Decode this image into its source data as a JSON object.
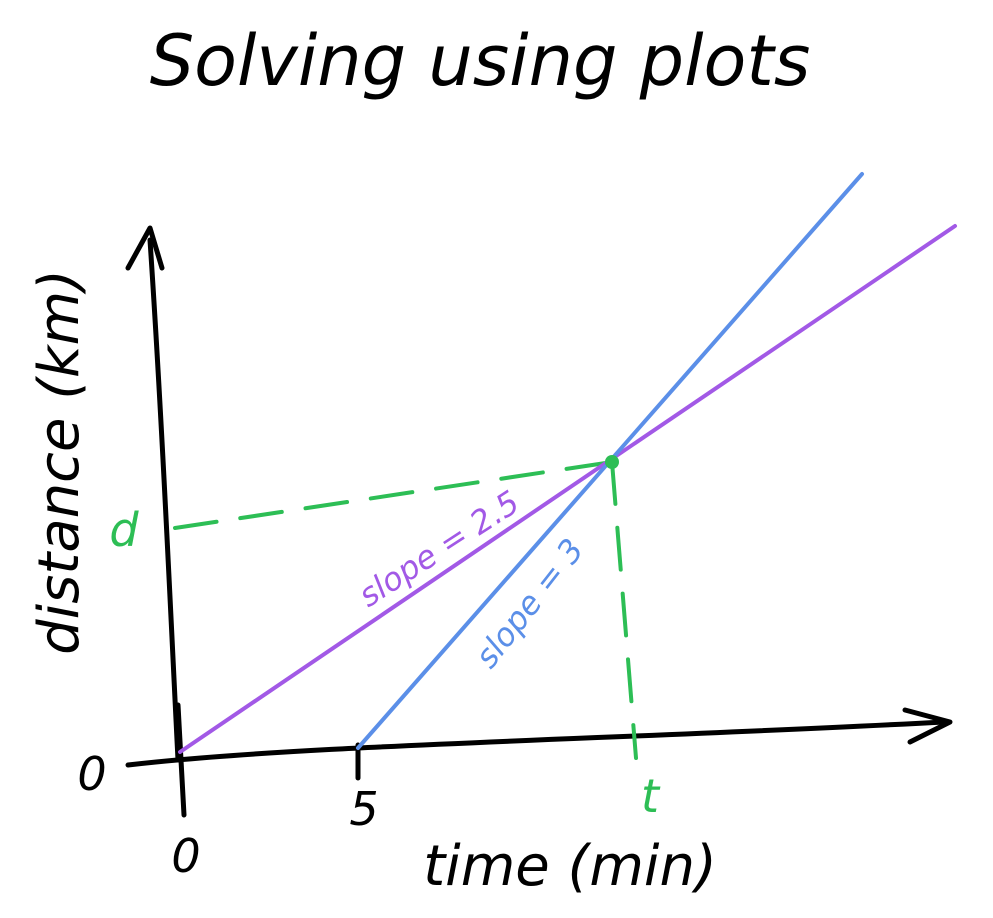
{
  "title": "Solving using plots",
  "axes": {
    "x_label": "time (min)",
    "y_label": "distance (km)",
    "x_origin_label": "0",
    "y_origin_label": "0",
    "x_tick_label": "5"
  },
  "intersection": {
    "x_label": "t",
    "y_label": "d"
  },
  "lines": [
    {
      "label": "slope = 2.5",
      "color": "#A259E6"
    },
    {
      "label": "slope = 3",
      "color": "#5B8FE8"
    }
  ],
  "guide_color": "#2DBE55"
}
